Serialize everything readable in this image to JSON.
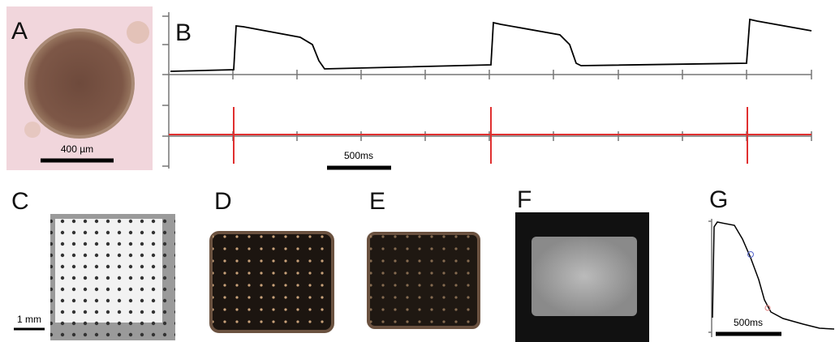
{
  "panels": [
    {
      "label": "A",
      "scale_bar": "400 µm"
    },
    {
      "label": "B",
      "scale_bar": "500ms"
    },
    {
      "label": "C",
      "scale_bar": "1 mm"
    },
    {
      "label": "D"
    },
    {
      "label": "E"
    },
    {
      "label": "F"
    },
    {
      "label": "G",
      "scale_bar": "500ms"
    }
  ]
}
